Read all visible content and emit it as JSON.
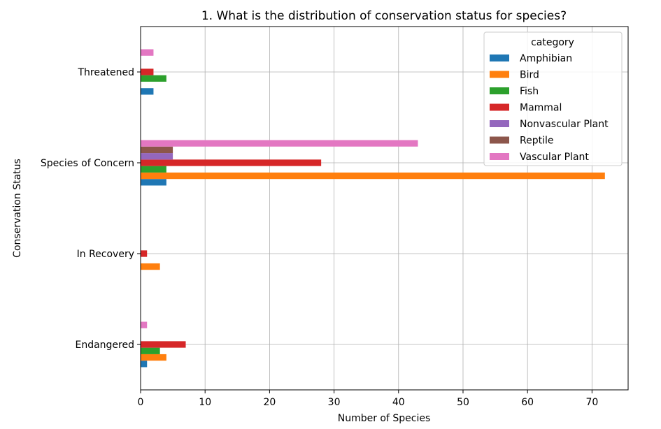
{
  "chart_data": {
    "type": "bar",
    "orientation": "horizontal",
    "title": "1. What is the distribution of conservation status for species?",
    "xlabel": "Number of Species",
    "ylabel": "Conservation Status",
    "categories": [
      "Endangered",
      "In Recovery",
      "Species of Concern",
      "Threatened"
    ],
    "xlim": [
      0,
      75.6
    ],
    "xticks": [
      0,
      10,
      20,
      30,
      40,
      50,
      60,
      70
    ],
    "grid": true,
    "legend": {
      "title": "category",
      "position": "top-right"
    },
    "series": [
      {
        "name": "Amphibian",
        "color": "#1f77b4",
        "values": [
          1,
          0,
          4,
          2
        ]
      },
      {
        "name": "Bird",
        "color": "#ff7f0e",
        "values": [
          4,
          3,
          72,
          0
        ]
      },
      {
        "name": "Fish",
        "color": "#2ca02c",
        "values": [
          3,
          0,
          4,
          4
        ]
      },
      {
        "name": "Mammal",
        "color": "#d62728",
        "values": [
          7,
          1,
          28,
          2
        ]
      },
      {
        "name": "Nonvascular Plant",
        "color": "#9467bd",
        "values": [
          0,
          0,
          5,
          0
        ]
      },
      {
        "name": "Reptile",
        "color": "#8c564b",
        "values": [
          0,
          0,
          5,
          0
        ]
      },
      {
        "name": "Vascular Plant",
        "color": "#e377c2",
        "values": [
          1,
          0,
          43,
          2
        ]
      }
    ]
  }
}
